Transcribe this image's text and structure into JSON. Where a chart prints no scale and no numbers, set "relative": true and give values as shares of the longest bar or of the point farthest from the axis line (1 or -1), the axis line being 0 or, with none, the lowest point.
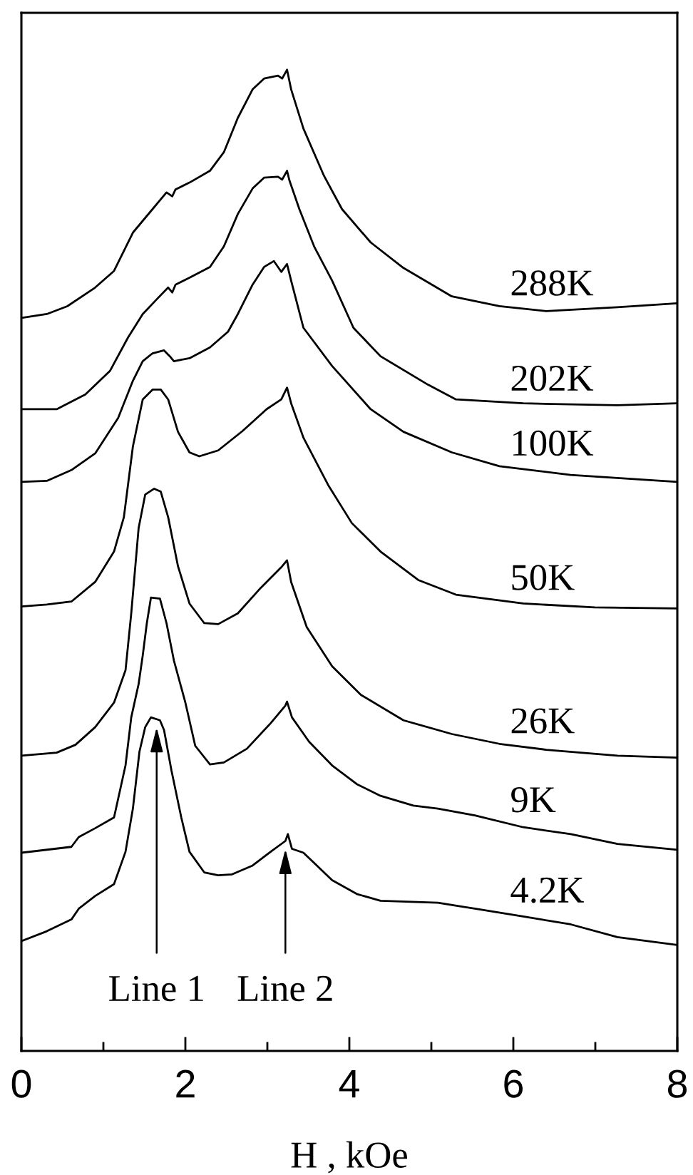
{
  "chart_data": {
    "type": "line",
    "relative": true,
    "tick_labels": "x",
    "xlabel": "H , kOe",
    "xlim": [
      0,
      8
    ],
    "xticks": [
      0,
      {
        "value": 1,
        "label": null
      },
      2,
      {
        "value": 3,
        "label": null
      },
      4,
      {
        "value": 5,
        "label": null
      },
      6,
      {
        "value": 7,
        "label": null
      },
      8
    ],
    "annotations": [
      {
        "text": "Line 1",
        "x": 1.65,
        "y": 0.338
      },
      {
        "text": "Line 2",
        "x": 3.22,
        "y": 0.214
      }
    ],
    "series": [
      {
        "name": "288K",
        "color": "#000000",
        "x": [
          0,
          0.31,
          0.56,
          0.9,
          1.13,
          1.36,
          1.6,
          1.77,
          1.84,
          1.88,
          2.05,
          2.3,
          2.47,
          2.64,
          2.82,
          2.96,
          3.13,
          3.18,
          3.24,
          3.29,
          3.44,
          3.69,
          3.91,
          4.26,
          4.66,
          5.25,
          5.83,
          6.4,
          7.27,
          8.0
        ],
        "values": [
          0.747,
          0.751,
          0.759,
          0.778,
          0.795,
          0.834,
          0.858,
          0.875,
          0.871,
          0.878,
          0.885,
          0.897,
          0.916,
          0.951,
          0.98,
          0.991,
          0.994,
          0.991,
          1.0,
          0.98,
          0.94,
          0.892,
          0.858,
          0.824,
          0.798,
          0.769,
          0.759,
          0.754,
          0.758,
          0.762
        ]
      },
      {
        "name": "202K",
        "color": "#000000",
        "x": [
          0,
          0.43,
          0.78,
          1.08,
          1.3,
          1.48,
          1.65,
          1.79,
          1.84,
          1.88,
          2.05,
          2.3,
          2.47,
          2.64,
          2.82,
          2.96,
          3.13,
          3.18,
          3.24,
          3.27,
          3.39,
          3.57,
          3.79,
          4.05,
          4.38,
          4.96,
          5.3,
          6.12,
          7.27,
          8.0
        ],
        "values": [
          0.654,
          0.654,
          0.669,
          0.693,
          0.727,
          0.751,
          0.766,
          0.778,
          0.773,
          0.781,
          0.788,
          0.799,
          0.82,
          0.853,
          0.879,
          0.89,
          0.891,
          0.888,
          0.897,
          0.887,
          0.858,
          0.82,
          0.785,
          0.737,
          0.708,
          0.679,
          0.664,
          0.66,
          0.658,
          0.66
        ]
      },
      {
        "name": "100K",
        "color": "#000000",
        "x": [
          0,
          0.31,
          0.61,
          0.9,
          1.18,
          1.36,
          1.48,
          1.6,
          1.74,
          1.81,
          1.86,
          2.05,
          2.3,
          2.52,
          2.64,
          2.82,
          2.96,
          3.08,
          3.17,
          3.24,
          3.29,
          3.44,
          3.79,
          4.26,
          4.66,
          5.25,
          5.83,
          6.7,
          8.0
        ],
        "values": [
          0.58,
          0.581,
          0.592,
          0.609,
          0.645,
          0.683,
          0.703,
          0.711,
          0.714,
          0.708,
          0.703,
          0.706,
          0.717,
          0.733,
          0.751,
          0.781,
          0.799,
          0.805,
          0.794,
          0.802,
          0.785,
          0.737,
          0.698,
          0.654,
          0.631,
          0.61,
          0.596,
          0.587,
          0.58
        ]
      },
      {
        "name": "50K",
        "color": "#000000",
        "x": [
          0,
          0.31,
          0.61,
          0.9,
          1.13,
          1.25,
          1.36,
          1.48,
          1.6,
          1.7,
          1.79,
          1.91,
          2.05,
          2.17,
          2.4,
          2.7,
          2.99,
          3.17,
          3.24,
          3.29,
          3.44,
          3.74,
          4.03,
          4.38,
          4.84,
          5.3,
          6.12,
          6.99,
          8.0
        ],
        "values": [
          0.453,
          0.455,
          0.458,
          0.478,
          0.509,
          0.544,
          0.616,
          0.664,
          0.674,
          0.674,
          0.664,
          0.631,
          0.61,
          0.606,
          0.612,
          0.632,
          0.654,
          0.664,
          0.676,
          0.66,
          0.625,
          0.577,
          0.538,
          0.509,
          0.48,
          0.465,
          0.456,
          0.452,
          0.451
        ]
      },
      {
        "name": "26K",
        "color": "#000000",
        "x": [
          0,
          0.43,
          0.66,
          0.9,
          1.13,
          1.27,
          1.34,
          1.43,
          1.51,
          1.62,
          1.7,
          1.79,
          1.91,
          2.05,
          2.23,
          2.4,
          2.64,
          2.92,
          3.17,
          3.24,
          3.29,
          3.48,
          3.79,
          4.14,
          4.66,
          5.25,
          5.83,
          6.4,
          7.27,
          8.0
        ],
        "values": [
          0.301,
          0.304,
          0.312,
          0.33,
          0.355,
          0.388,
          0.446,
          0.533,
          0.567,
          0.573,
          0.57,
          0.544,
          0.494,
          0.456,
          0.436,
          0.435,
          0.446,
          0.472,
          0.493,
          0.5,
          0.478,
          0.432,
          0.392,
          0.363,
          0.337,
          0.323,
          0.313,
          0.307,
          0.301,
          0.299
        ]
      },
      {
        "name": "9K",
        "color": "#000000",
        "x": [
          0,
          0.61,
          0.7,
          0.9,
          1.13,
          1.27,
          1.34,
          1.43,
          1.48,
          1.53,
          1.58,
          1.69,
          1.77,
          1.86,
          2.0,
          2.12,
          2.3,
          2.47,
          2.75,
          3.04,
          3.22,
          3.24,
          3.3,
          3.51,
          3.79,
          4.09,
          4.38,
          4.78,
          5.08,
          5.53,
          6.12,
          6.7,
          7.27,
          8.0
        ],
        "values": [
          0.202,
          0.208,
          0.218,
          0.227,
          0.238,
          0.291,
          0.34,
          0.374,
          0.403,
          0.436,
          0.462,
          0.461,
          0.436,
          0.398,
          0.355,
          0.311,
          0.292,
          0.294,
          0.308,
          0.334,
          0.352,
          0.356,
          0.34,
          0.315,
          0.291,
          0.272,
          0.26,
          0.25,
          0.247,
          0.24,
          0.228,
          0.221,
          0.211,
          0.205
        ]
      },
      {
        "name": "4.2K",
        "color": "#000000",
        "x": [
          0,
          0.31,
          0.61,
          0.7,
          0.9,
          1.13,
          1.27,
          1.36,
          1.44,
          1.51,
          1.58,
          1.69,
          1.74,
          1.83,
          1.95,
          2.05,
          2.23,
          2.4,
          2.57,
          2.82,
          3.04,
          3.22,
          3.25,
          3.3,
          3.44,
          3.79,
          4.09,
          4.38,
          5.08,
          5.53,
          6.12,
          6.7,
          7.27,
          8.0
        ],
        "values": [
          0.112,
          0.122,
          0.134,
          0.145,
          0.158,
          0.17,
          0.203,
          0.247,
          0.305,
          0.33,
          0.34,
          0.337,
          0.327,
          0.286,
          0.238,
          0.203,
          0.182,
          0.179,
          0.18,
          0.189,
          0.203,
          0.214,
          0.221,
          0.206,
          0.202,
          0.174,
          0.16,
          0.153,
          0.151,
          0.145,
          0.137,
          0.129,
          0.116,
          0.108
        ]
      }
    ]
  }
}
